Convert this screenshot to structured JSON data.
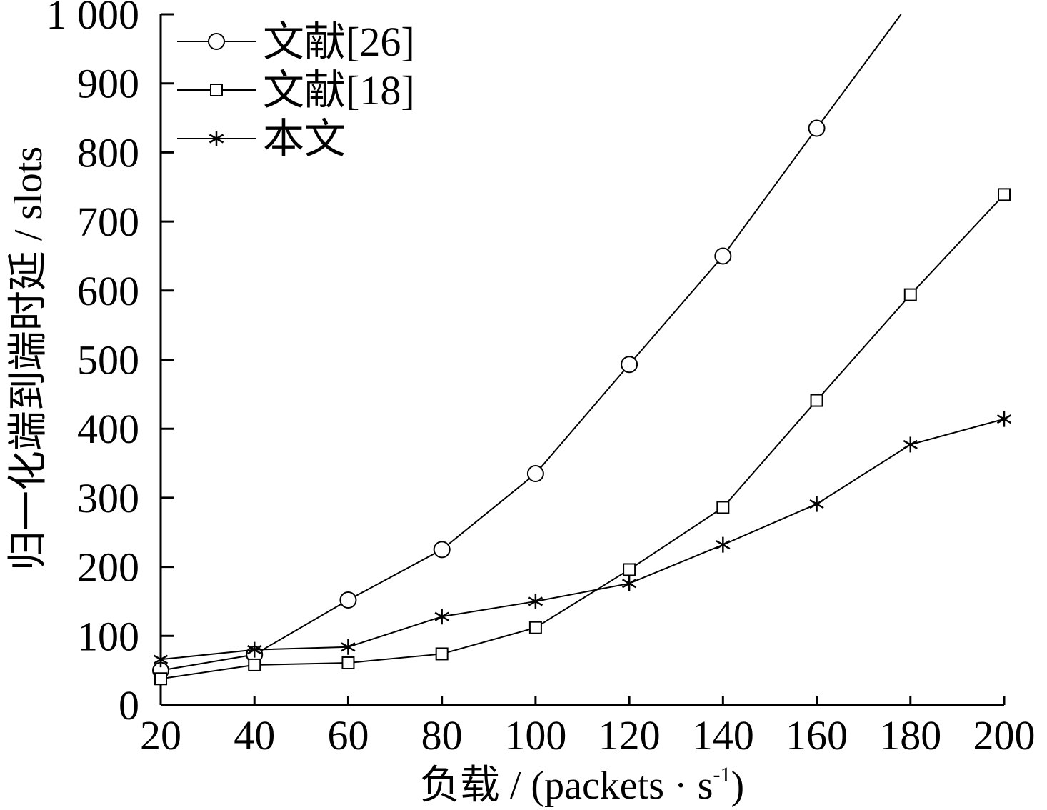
{
  "chart_data": {
    "type": "line",
    "xlabel": "负载 / (packets · s",
    "xlabel_sup": "-1",
    "xlabel_end": ")",
    "ylabel": "归一化端到端时延 / slots",
    "x": [
      20,
      40,
      60,
      80,
      100,
      120,
      140,
      160,
      180,
      200
    ],
    "xlim": [
      20,
      200
    ],
    "ylim": [
      0,
      1000
    ],
    "x_tick_labels": [
      "20",
      "40",
      "60",
      "80",
      "100",
      "120",
      "140",
      "160",
      "180",
      "200"
    ],
    "y_tick_values": [
      0,
      100,
      200,
      300,
      400,
      500,
      600,
      700,
      800,
      900,
      1000
    ],
    "y_tick_labels": [
      "0",
      "100",
      "200",
      "300",
      "400",
      "500",
      "600",
      "700",
      "800",
      "900",
      "1 000"
    ],
    "grid": false,
    "legend_position": "top-left",
    "series": [
      {
        "name": "文献[26]",
        "marker": "circle",
        "x": [
          20,
          40,
          60,
          80,
          100,
          120,
          140,
          160,
          178
        ],
        "values": [
          50,
          73,
          152,
          225,
          335,
          493,
          650,
          835,
          1000
        ],
        "marker_count": 8
      },
      {
        "name": "文献[18]",
        "marker": "square",
        "x": [
          20,
          40,
          60,
          80,
          100,
          120,
          140,
          160,
          180,
          200
        ],
        "values": [
          38,
          58,
          61,
          74,
          112,
          196,
          286,
          441,
          594,
          739
        ],
        "marker_count": 10
      },
      {
        "name": "本文",
        "marker": "asterisk",
        "x": [
          20,
          40,
          60,
          80,
          100,
          120,
          140,
          160,
          180,
          200
        ],
        "values": [
          66,
          80,
          84,
          128,
          150,
          176,
          232,
          291,
          377,
          414
        ],
        "marker_count": 10
      }
    ],
    "colors": {
      "line": "#000000",
      "background": "#ffffff"
    }
  }
}
